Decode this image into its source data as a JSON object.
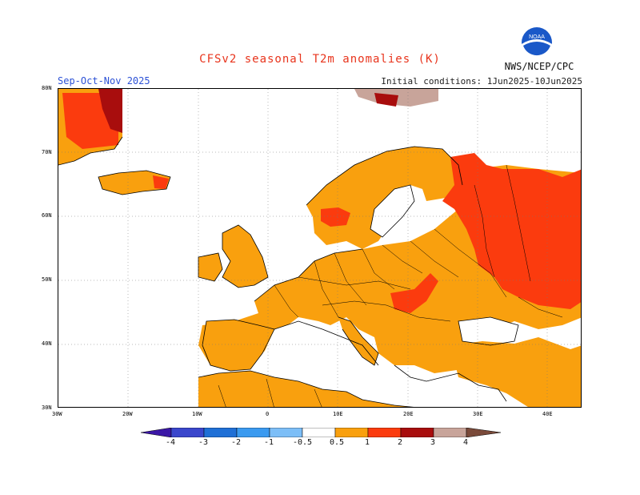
{
  "title": "CFSv2 seasonal T2m anomalies (K)",
  "period": "Sep-Oct-Nov 2025",
  "initial_conditions": "Initial conditions: 1Jun2025-10Jun2025",
  "agency": "NWS/NCEP/CPC",
  "logo_text": "NOAA",
  "lat_labels": [
    "80N",
    "70N",
    "60N",
    "50N",
    "40N",
    "30N"
  ],
  "lon_labels": [
    "30W",
    "20W",
    "10W",
    "0",
    "10E",
    "20E",
    "30E",
    "40E"
  ],
  "colorbar": {
    "labels": [
      "-4",
      "-3",
      "-2",
      "-1",
      "-0.5",
      "0.5",
      "1",
      "2",
      "3",
      "4"
    ],
    "colors": [
      "#3b17a6",
      "#3a46cc",
      "#1f6fd6",
      "#3a9af0",
      "#7cbef7",
      "#ffffff",
      "#f9a00e",
      "#fb3b0e",
      "#a80d0d",
      "#c8a49a",
      "#7a4a3a"
    ]
  },
  "map_regions": {
    "anomaly_0_5_to_1": {
      "color": "#f9a00e",
      "label": "0.5 to 1"
    },
    "anomaly_1_to_2": {
      "color": "#fb3b0e",
      "label": "1 to 2"
    },
    "anomaly_2_to_3": {
      "color": "#a80d0d",
      "label": "2 to 3"
    },
    "anomaly_3_to_4": {
      "color": "#c8a49a",
      "label": "3 to 4"
    }
  }
}
